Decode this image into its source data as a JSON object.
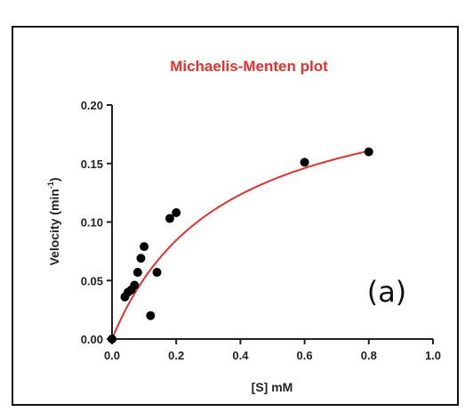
{
  "chart_data": {
    "type": "scatter",
    "title": "Michaelis-Menten plot",
    "title_color": "#e8302e",
    "xlabel": "[S] mM",
    "ylabel": "Velocity (min",
    "ylabel_sup": "-1",
    "ylabel_close": ")",
    "panel_label": "(a)",
    "xlim": [
      0,
      1.0
    ],
    "ylim": [
      0,
      0.2
    ],
    "x_ticks": [
      "0.0",
      "0.2",
      "0.4",
      "0.6",
      "0.8",
      "1.0"
    ],
    "y_ticks": [
      "0.00",
      "0.05",
      "0.10",
      "0.15",
      "0.20"
    ],
    "grid": false,
    "series": [
      {
        "kind": "points",
        "color": "#000000",
        "x": [
          0.0,
          0.04,
          0.05,
          0.06,
          0.07,
          0.08,
          0.09,
          0.1,
          0.12,
          0.14,
          0.18,
          0.2,
          0.6,
          0.8
        ],
        "y": [
          0.0,
          0.036,
          0.04,
          0.042,
          0.046,
          0.057,
          0.069,
          0.079,
          0.02,
          0.057,
          0.103,
          0.108,
          0.151,
          0.16
        ]
      },
      {
        "kind": "fit",
        "color": "#e8302e",
        "model": "michaelis-menten",
        "vmax": 0.23,
        "km": 0.345,
        "x_range": [
          0.0,
          0.8
        ]
      }
    ]
  }
}
